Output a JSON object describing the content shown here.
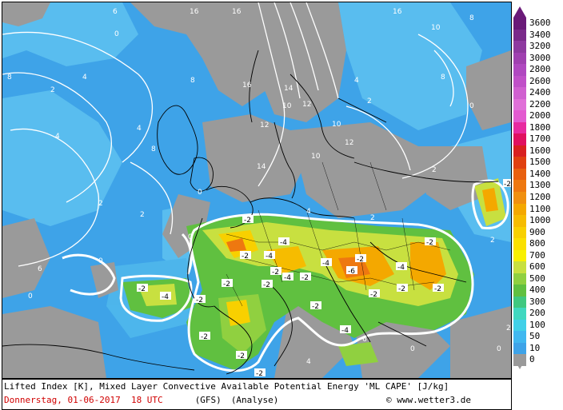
{
  "title_line": "Lifted Index [K], Mixed Layer Convective Available Potential Energy 'ML CAPE' [J/kg]",
  "date_text": "Donnerstag, 01-06-2017  18 UTC",
  "model_text": "(GFS)",
  "analysis_text": "(Analyse)",
  "copyright_text": "© www.wetter3.de",
  "colorbar": {
    "labels": [
      "3600",
      "3400",
      "3200",
      "3000",
      "2800",
      "2600",
      "2400",
      "2200",
      "2000",
      "1800",
      "1700",
      "1600",
      "1500",
      "1400",
      "1300",
      "1200",
      "1100",
      "1000",
      "900",
      "800",
      "700",
      "600",
      "500",
      "400",
      "300",
      "200",
      "100",
      "50",
      "10",
      "0"
    ],
    "colors": [
      "#6a1a78",
      "#7a2a8a",
      "#8e3aa0",
      "#a040b0",
      "#b048c0",
      "#c050c8",
      "#d060d0",
      "#e070d8",
      "#e35ad0",
      "#e82aa0",
      "#e01060",
      "#d82020",
      "#e04010",
      "#e86010",
      "#ee7810",
      "#f09010",
      "#f4a800",
      "#f6bc00",
      "#f8d000",
      "#fae000",
      "#f8f000",
      "#c8e040",
      "#90d040",
      "#60c040",
      "#40c880",
      "#40d8c0",
      "#40d0e8",
      "#40b8f0",
      "#3ea3e8",
      "#9a9a9a"
    ]
  },
  "map": {
    "li_labels_positive": [
      "6",
      "8",
      "0",
      "2",
      "4",
      "16",
      "14",
      "12",
      "10"
    ],
    "li_labels_negative": [
      "-2",
      "-4",
      "-6"
    ],
    "negative_values_shown": [
      {
        "v": "-2"
      },
      {
        "v": "-4"
      },
      {
        "v": "-2"
      },
      {
        "v": "-4"
      },
      {
        "v": "-6"
      },
      {
        "v": "-2"
      },
      {
        "v": "-4"
      },
      {
        "v": "-2"
      },
      {
        "v": "-2"
      },
      {
        "v": "-4"
      },
      {
        "v": "-2"
      },
      {
        "v": "-2"
      },
      {
        "v": "-2"
      },
      {
        "v": "-4"
      },
      {
        "v": "-2"
      },
      {
        "v": "-2"
      },
      {
        "v": "-2"
      },
      {
        "v": "-4"
      },
      {
        "v": "-2"
      },
      {
        "v": "-2"
      },
      {
        "v": "-2"
      },
      {
        "v": "-4"
      },
      {
        "v": "-2"
      },
      {
        "v": "-2"
      },
      {
        "v": "-2"
      },
      {
        "v": "-2"
      }
    ]
  }
}
